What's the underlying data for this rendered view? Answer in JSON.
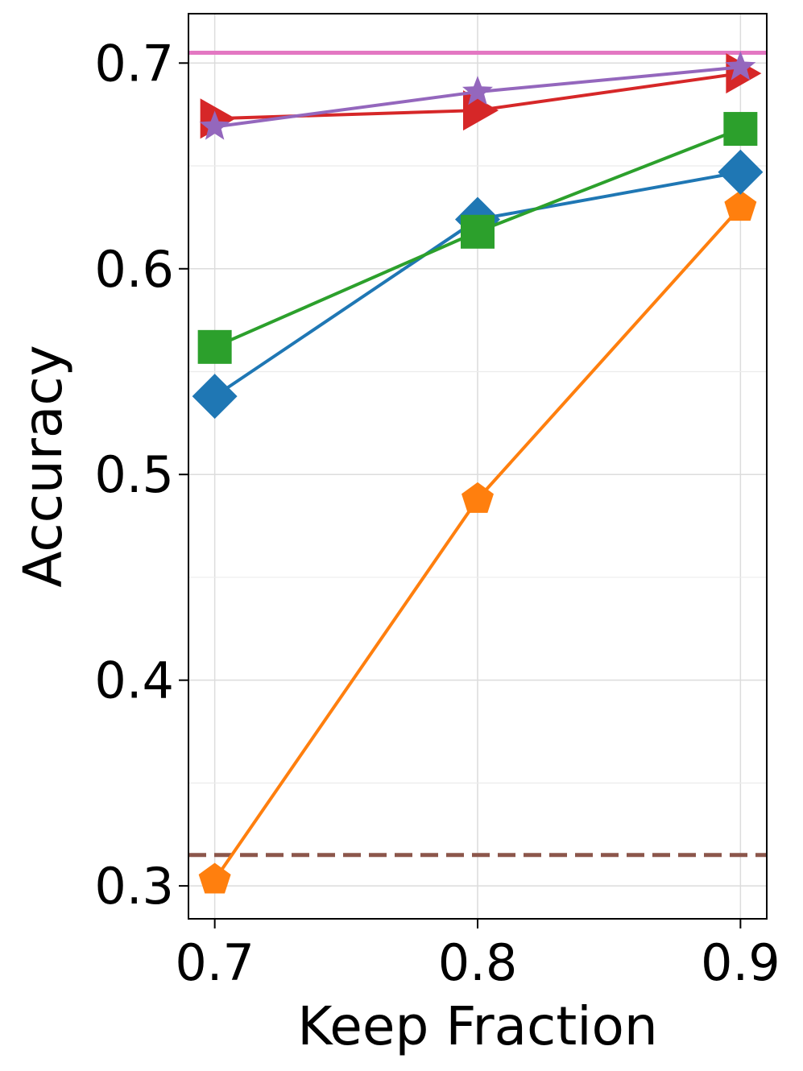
{
  "chart_data": {
    "type": "line",
    "xlabel": "Keep Fraction",
    "ylabel": "Accuracy",
    "xlim": [
      0.69,
      0.91
    ],
    "ylim": [
      0.284,
      0.724
    ],
    "x": [
      0.7,
      0.8,
      0.9
    ],
    "xticks": [
      0.7,
      0.8,
      0.9
    ],
    "xtick_labels": [
      "0.7",
      "0.8",
      "0.9"
    ],
    "yticks": [
      0.3,
      0.4,
      0.5,
      0.6,
      0.7
    ],
    "ytick_labels": [
      "0.3",
      "0.4",
      "0.5",
      "0.6",
      "0.7"
    ],
    "minor_ygrid": [
      0.35,
      0.45,
      0.55,
      0.65
    ],
    "grid": true,
    "legend": "none",
    "series": [
      {
        "values": [
          0.303,
          0.488,
          0.63
        ],
        "color": "#ff7f0e",
        "marker": "pentagon"
      },
      {
        "values": [
          0.538,
          0.624,
          0.647
        ],
        "color": "#1f77b4",
        "marker": "diamond"
      },
      {
        "values": [
          0.562,
          0.618,
          0.668
        ],
        "color": "#2ca02c",
        "marker": "square"
      },
      {
        "values": [
          0.673,
          0.677,
          0.695
        ],
        "color": "#d62728",
        "marker": "triangle-right"
      },
      {
        "values": [
          0.669,
          0.686,
          0.698
        ],
        "color": "#9467bd",
        "marker": "star"
      }
    ],
    "reference_lines": [
      {
        "y": 0.705,
        "color": "#e377c2",
        "style": "solid"
      },
      {
        "y": 0.315,
        "color": "#8c564b",
        "style": "dashed"
      }
    ]
  }
}
